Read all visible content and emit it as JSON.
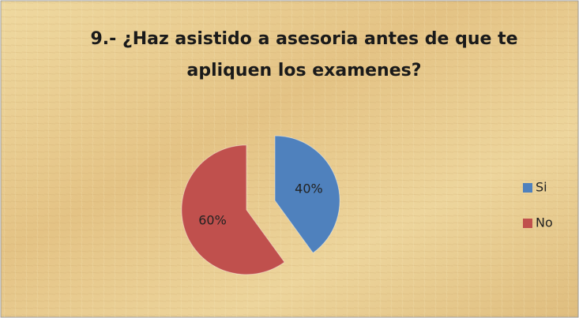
{
  "chart_data": {
    "type": "pie",
    "title": "9.- ¿Haz asistido a asesoria antes de que te apliquen los examenes?",
    "categories": [
      "Si",
      "No"
    ],
    "values": [
      40,
      60
    ],
    "value_labels": [
      "40%",
      "60%"
    ],
    "colors": [
      "#4f81bd",
      "#c0504d"
    ],
    "legend": "right"
  }
}
